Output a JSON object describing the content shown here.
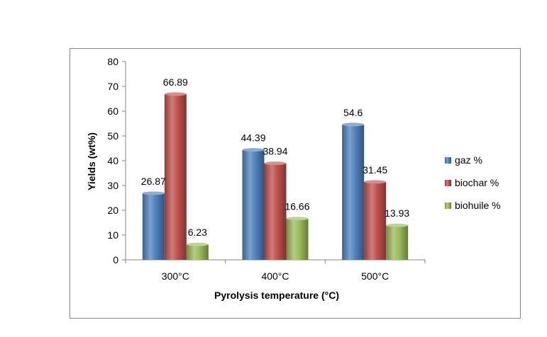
{
  "chart_data": {
    "type": "bar",
    "title": "",
    "xlabel": "Pyrolysis temperature (°C)",
    "ylabel": "Yields (wt%)",
    "ylim": [
      0,
      80
    ],
    "yticks": [
      0,
      10,
      20,
      30,
      40,
      50,
      60,
      70,
      80
    ],
    "categories": [
      "300°C",
      "400°C",
      "500°C"
    ],
    "series": [
      {
        "name": "gaz %",
        "values": [
          26.87,
          44.39,
          54.6
        ],
        "labels": [
          "26.87",
          "44.39",
          "54.6"
        ],
        "color": "#4F81BD"
      },
      {
        "name": "biochar %",
        "values": [
          66.89,
          38.94,
          31.45
        ],
        "labels": [
          "66.89",
          "38.94",
          "31.45"
        ],
        "color": "#C0504D"
      },
      {
        "name": "biohuile %",
        "values": [
          6.23,
          16.66,
          13.93
        ],
        "labels": [
          "6.23",
          "16.66",
          "13.93"
        ],
        "color": "#9BBB59"
      }
    ],
    "grid": false,
    "legend_position": "right",
    "bar_style": "3d-cylinder-gradient"
  }
}
